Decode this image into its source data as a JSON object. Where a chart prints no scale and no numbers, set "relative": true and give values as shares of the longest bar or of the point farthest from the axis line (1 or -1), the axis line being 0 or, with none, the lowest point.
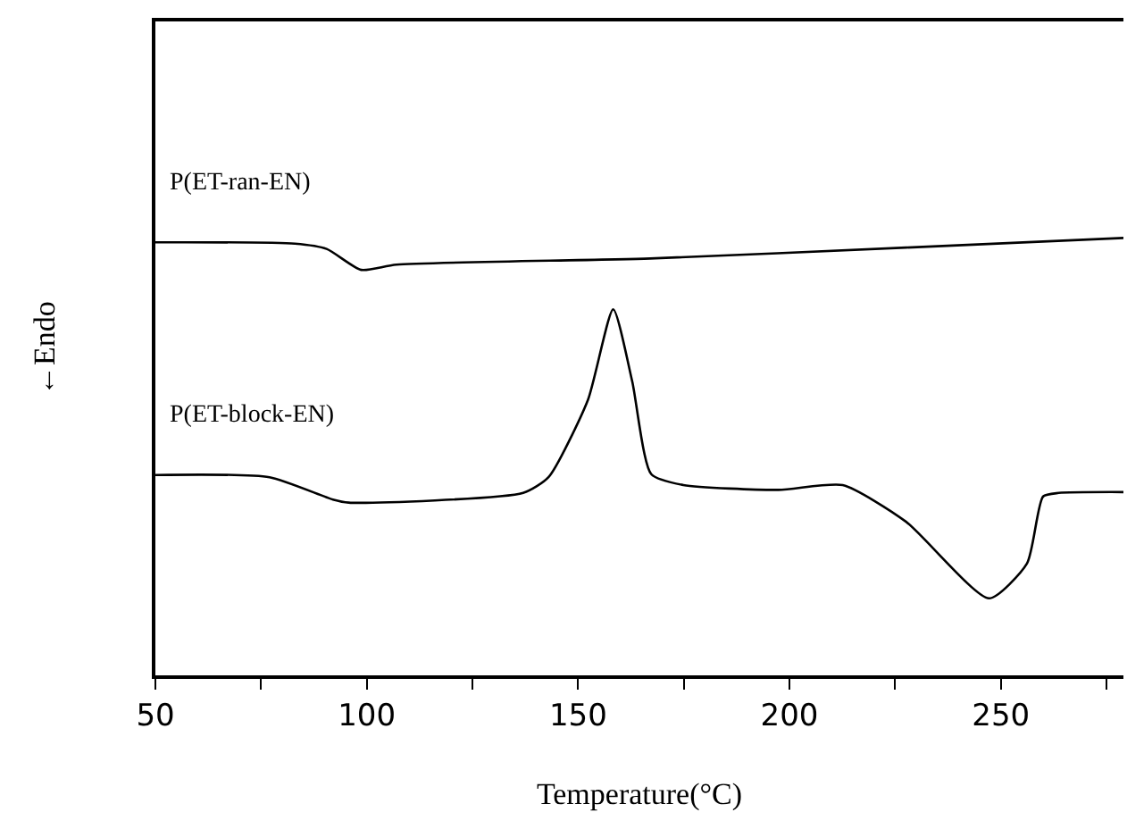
{
  "chart_data": {
    "type": "line",
    "relative": true,
    "xlabel": "Temperature(°C)",
    "ylabel": "←Endo",
    "xlim": [
      50,
      279
    ],
    "xticks": [
      50,
      {
        "value": 75,
        "label": null
      },
      100,
      {
        "value": 125,
        "label": null
      },
      150,
      {
        "value": 175,
        "label": null
      },
      200,
      {
        "value": 225,
        "label": null
      },
      250,
      {
        "value": 275,
        "label": null
      }
    ],
    "tick_labels": "x",
    "grid": false,
    "legend": false,
    "marker": "none",
    "line_style": "solid",
    "series": [
      {
        "name": "P(ET-ran-EN)",
        "color": "#000000",
        "x": [
          50,
          83,
          90.5,
          98.7,
          107,
          167,
          227.6,
          279
        ],
        "values": [
          0.99,
          0.987,
          0.975,
          0.927,
          0.939,
          0.953,
          0.978,
          1
        ]
      },
      {
        "name": "P(ET-block-EN)",
        "color": "#000000",
        "x": [
          50,
          77,
          92,
          95.7,
          137,
          143,
          152.3,
          158.3,
          162.8,
          167.3,
          174.9,
          197.4,
          212.6,
          227.6,
          247.2,
          256.2,
          260,
          263.7,
          279
        ],
        "values": [
          0.458,
          0.453,
          0.402,
          0.395,
          0.417,
          0.453,
          0.629,
          0.837,
          0.672,
          0.46,
          0.435,
          0.424,
          0.435,
          0.351,
          0.176,
          0.256,
          0.409,
          0.417,
          0.419
        ]
      }
    ]
  }
}
